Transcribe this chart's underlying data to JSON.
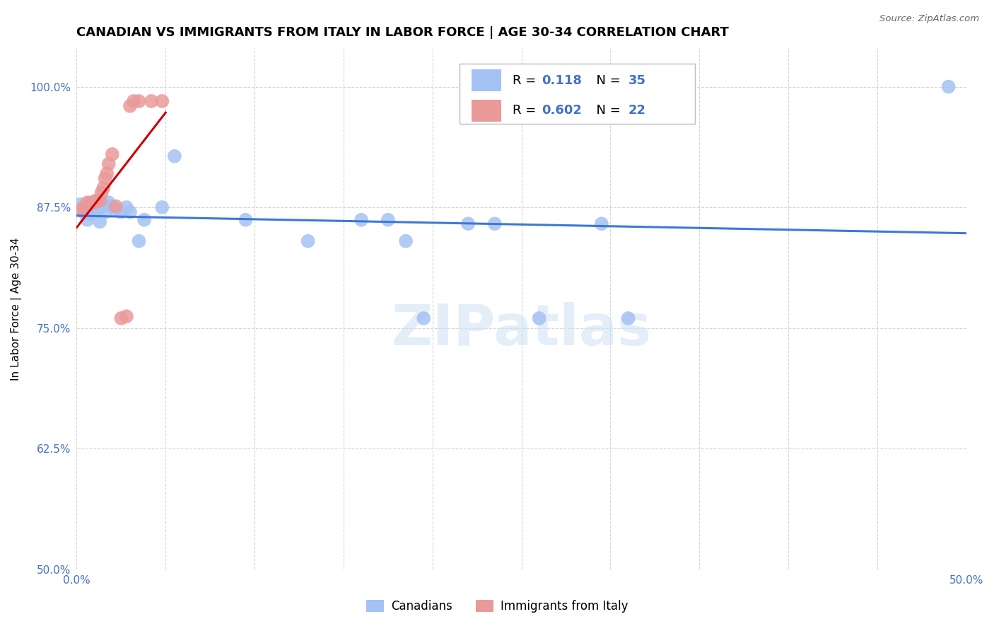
{
  "title": "CANADIAN VS IMMIGRANTS FROM ITALY IN LABOR FORCE | AGE 30-34 CORRELATION CHART",
  "source": "Source: ZipAtlas.com",
  "ylabel": "In Labor Force | Age 30-34",
  "xlim": [
    0.0,
    0.5
  ],
  "ylim": [
    0.5,
    1.04
  ],
  "yticks": [
    0.5,
    0.625,
    0.75,
    0.875,
    1.0
  ],
  "ytick_labels": [
    "50.0%",
    "62.5%",
    "75.0%",
    "87.5%",
    "100.0%"
  ],
  "xticks": [
    0.0,
    0.05,
    0.1,
    0.15,
    0.2,
    0.25,
    0.3,
    0.35,
    0.4,
    0.45,
    0.5
  ],
  "xtick_labels": [
    "0.0%",
    "",
    "",
    "",
    "",
    "",
    "",
    "",
    "",
    "",
    "50.0%"
  ],
  "blue_R": "0.118",
  "blue_N": "35",
  "pink_R": "0.602",
  "pink_N": "22",
  "blue_color": "#a4c2f4",
  "pink_color": "#ea9999",
  "blue_line_color": "#3c78d8",
  "pink_line_color": "#cc0000",
  "axis_color": "#4472c4",
  "grid_color": "#cccccc",
  "title_fontsize": 13,
  "blue_x": [
    0.002,
    0.004,
    0.006,
    0.007,
    0.008,
    0.009,
    0.01,
    0.011,
    0.012,
    0.013,
    0.014,
    0.015,
    0.016,
    0.018,
    0.02,
    0.022,
    0.025,
    0.028,
    0.03,
    0.035,
    0.038,
    0.048,
    0.055,
    0.095,
    0.13,
    0.16,
    0.175,
    0.185,
    0.195,
    0.22,
    0.235,
    0.26,
    0.295,
    0.31,
    0.49
  ],
  "blue_y": [
    0.878,
    0.87,
    0.862,
    0.875,
    0.868,
    0.875,
    0.88,
    0.87,
    0.875,
    0.86,
    0.875,
    0.878,
    0.87,
    0.88,
    0.876,
    0.872,
    0.87,
    0.875,
    0.87,
    0.84,
    0.862,
    0.875,
    0.928,
    0.862,
    0.84,
    0.862,
    0.862,
    0.84,
    0.76,
    0.858,
    0.858,
    0.76,
    0.858,
    0.76,
    1.0
  ],
  "pink_x": [
    0.002,
    0.004,
    0.006,
    0.007,
    0.008,
    0.01,
    0.011,
    0.013,
    0.014,
    0.015,
    0.016,
    0.017,
    0.018,
    0.02,
    0.022,
    0.025,
    0.028,
    0.03,
    0.032,
    0.035,
    0.042,
    0.048
  ],
  "pink_y": [
    0.872,
    0.875,
    0.88,
    0.878,
    0.88,
    0.88,
    0.882,
    0.882,
    0.89,
    0.895,
    0.905,
    0.91,
    0.92,
    0.93,
    0.876,
    0.76,
    0.762,
    0.98,
    0.985,
    0.985,
    0.985,
    0.985
  ]
}
